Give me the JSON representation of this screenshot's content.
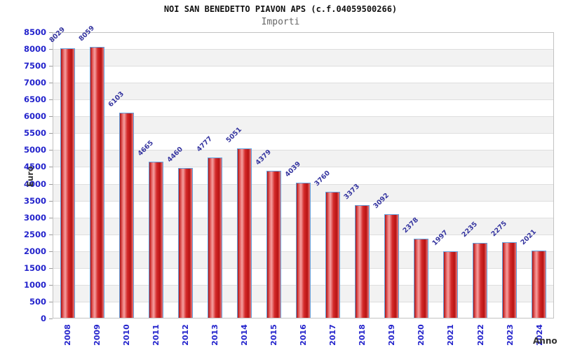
{
  "title": "NOI SAN BENEDETTO PIAVON APS (c.f.04059500266)",
  "subtitle": "Importi",
  "chart_data": {
    "type": "bar",
    "title": "NOI SAN BENEDETTO PIAVON APS (c.f.04059500266)",
    "subtitle": "Importi",
    "xlabel": "Anno",
    "ylabel": "Euro",
    "categories": [
      "2008",
      "2009",
      "2010",
      "2011",
      "2012",
      "2013",
      "2014",
      "2015",
      "2016",
      "2017",
      "2018",
      "2019",
      "2020",
      "2021",
      "2022",
      "2023",
      "2024"
    ],
    "values": [
      8029,
      8059,
      6103,
      4665,
      4460,
      4777,
      5051,
      4379,
      4039,
      3760,
      3373,
      3092,
      2378,
      1997,
      2235,
      2275,
      2021
    ],
    "ylim": [
      0,
      8500
    ],
    "ytick_step": 500,
    "yticks": [
      8500,
      8000,
      7500,
      7000,
      6500,
      6000,
      5500,
      5000,
      4500,
      4000,
      3500,
      3000,
      2500,
      2000,
      1500,
      1000,
      500,
      0
    ],
    "grid": true,
    "legend": "none",
    "colors": {
      "bar_fill": "#d42a2a",
      "bar_highlight": "#f5a0a0",
      "bar_border": "#63a0dc",
      "axis_tick_text": "#2424cc",
      "value_label_text": "#3636a0",
      "axis_title_text": "#333333",
      "band_alt": "#f2f2f2",
      "band_main": "#ffffff",
      "grid_line": "#dedede",
      "plot_border": "#c2c2c2",
      "title_text": "#111111",
      "subtitle_text": "#666666"
    }
  }
}
